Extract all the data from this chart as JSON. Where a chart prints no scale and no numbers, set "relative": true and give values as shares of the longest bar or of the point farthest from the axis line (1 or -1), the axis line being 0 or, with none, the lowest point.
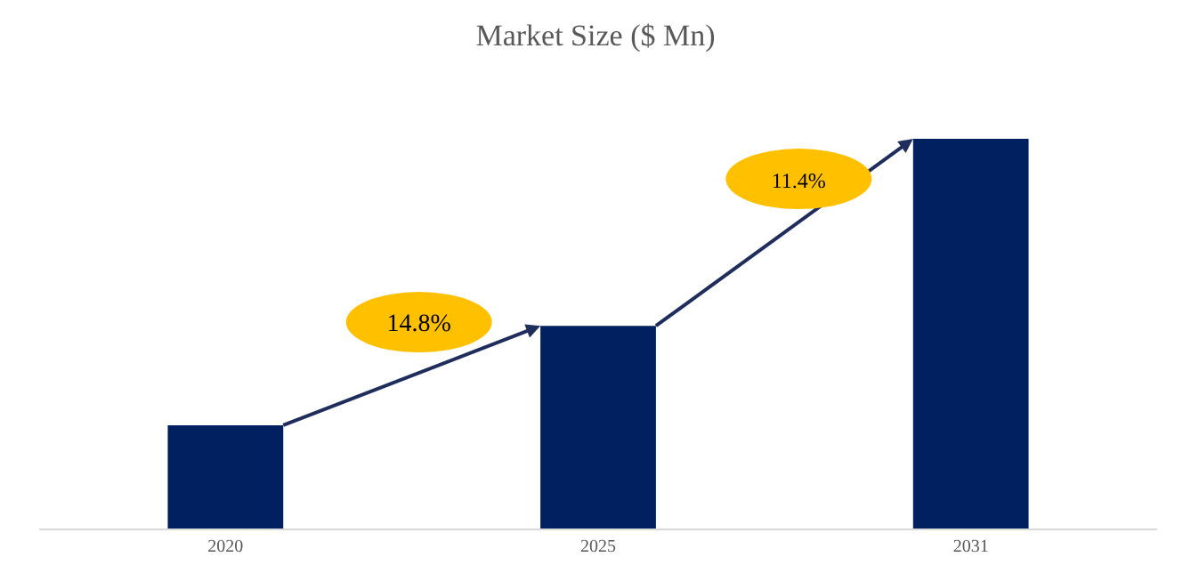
{
  "chart_data": {
    "type": "bar",
    "title": "Market Size ($ Mn)",
    "categories": [
      "2020",
      "2025",
      "2031"
    ],
    "values": [
      0.265,
      0.52,
      1
    ],
    "color": "#002060",
    "relative": true,
    "grid": false,
    "annotations": [
      "14.8%",
      "11.4%"
    ]
  }
}
